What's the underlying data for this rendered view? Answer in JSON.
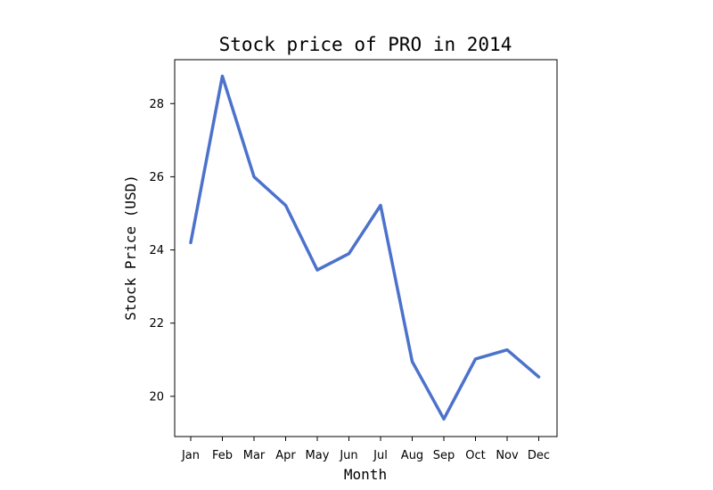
{
  "chart_data": {
    "type": "line",
    "title": "Stock price of PRO in 2014",
    "xlabel": "Month",
    "ylabel": "Stock Price (USD)",
    "categories": [
      "Jan",
      "Feb",
      "Mar",
      "Apr",
      "May",
      "Jun",
      "Jul",
      "Aug",
      "Sep",
      "Oct",
      "Nov",
      "Dec"
    ],
    "series": [
      {
        "values": [
          24.2,
          28.75,
          26.0,
          25.22,
          23.45,
          23.9,
          25.22,
          20.95,
          19.38,
          21.02,
          21.27,
          20.53
        ],
        "color": "#4c72cc"
      }
    ],
    "yticks": [
      20,
      22,
      24,
      26,
      28
    ],
    "ylim": [
      18.9,
      29.2
    ],
    "grid": false,
    "legend": "none"
  }
}
